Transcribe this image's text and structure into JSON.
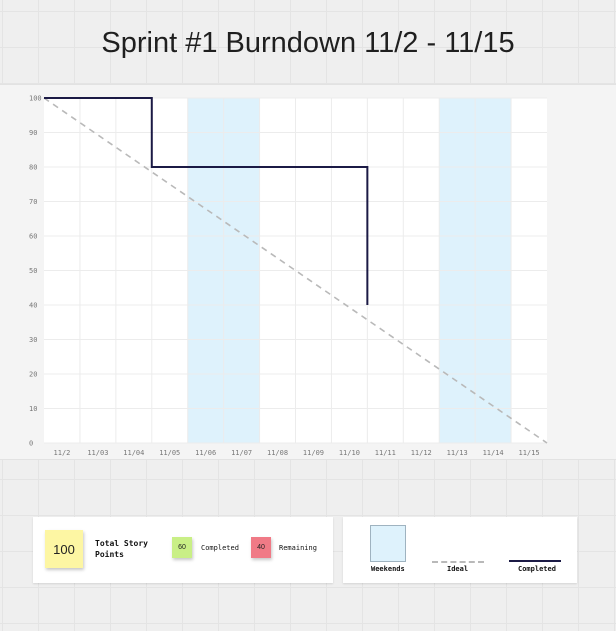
{
  "title": "Sprint #1 Burndown 11/2 - 11/15",
  "chart_data": {
    "type": "line",
    "title": "Sprint #1 Burndown 11/2 - 11/15",
    "categories": [
      "11/2",
      "11/03",
      "11/04",
      "11/05",
      "11/06",
      "11/07",
      "11/08",
      "11/09",
      "11/10",
      "11/11",
      "11/12",
      "11/13",
      "11/14",
      "11/15"
    ],
    "y_ticks": [
      "100",
      "90",
      "80",
      "70",
      "60",
      "50",
      "40",
      "30",
      "20",
      "10",
      "0"
    ],
    "ylim": [
      0,
      100
    ],
    "grid": true,
    "weekend_bands": [
      [
        "11/06",
        "11/07"
      ],
      [
        "11/13",
        "11/14"
      ]
    ],
    "series": [
      {
        "name": "Ideal",
        "style": "dashed",
        "color": "#b9b9b9",
        "points": [
          [
            "11/2",
            100
          ],
          [
            "11/15",
            0
          ]
        ]
      },
      {
        "name": "Completed",
        "style": "step",
        "color": "#1b1a45",
        "points": [
          [
            "11/2",
            100
          ],
          [
            "11/04",
            100
          ],
          [
            "11/04",
            80
          ],
          [
            "11/10",
            80
          ],
          [
            "11/10",
            40
          ]
        ]
      }
    ],
    "colors": {
      "weekend": "#def2fc",
      "plot_background": "#ffffff",
      "grid": "#ececec"
    }
  },
  "summary": {
    "total_value": "100",
    "total_label": "Total Story Points",
    "completed_value": "60",
    "completed_label": "Completed",
    "remaining_value": "40",
    "remaining_label": "Remaining",
    "colors": {
      "total": "#fdf6a3",
      "completed": "#c9ef86",
      "remaining": "#f07a86"
    }
  },
  "legend": {
    "weekends_label": "Weekends",
    "ideal_label": "Ideal",
    "completed_label": "Completed"
  }
}
